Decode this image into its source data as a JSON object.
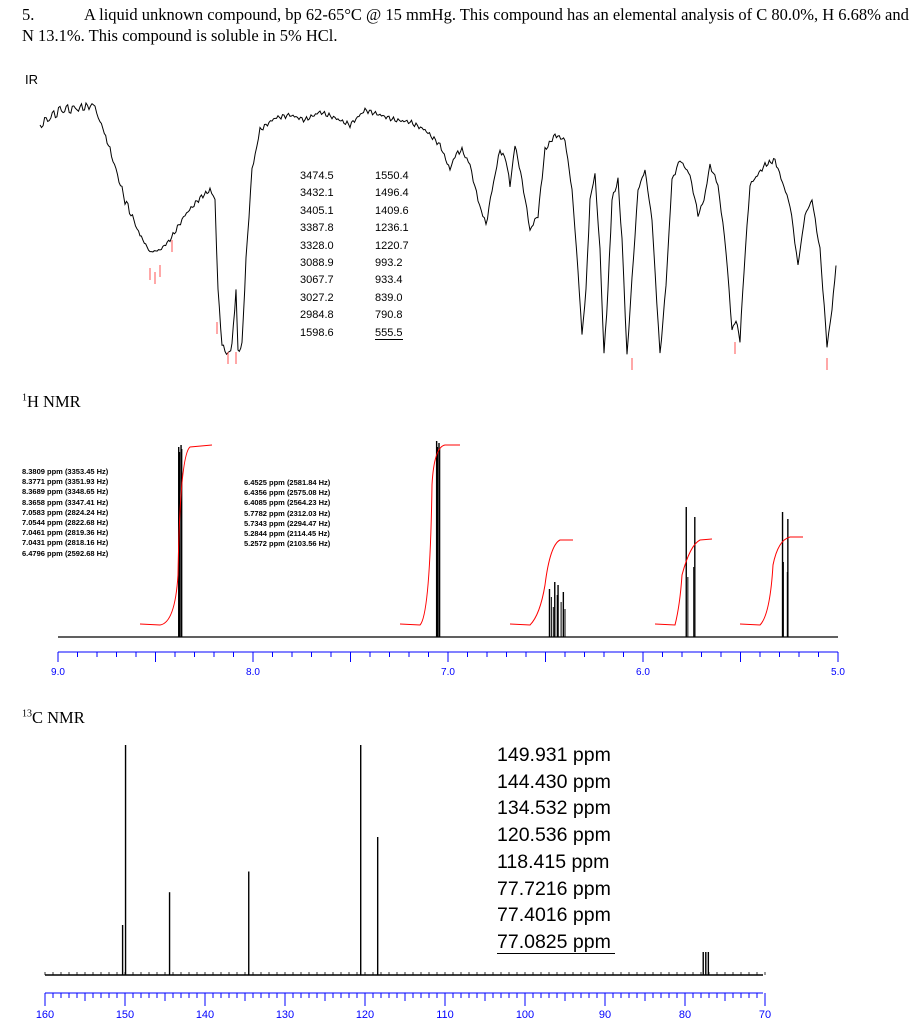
{
  "problem": {
    "number": "5.",
    "text": "A liquid unknown compound, bp 62-65°C @ 15 mmHg.  This compound has an elemental analysis of C 80.0%, H 6.68% and N 13.1%.  This compound is soluble in 5% HCl."
  },
  "labels": {
    "ir": "IR",
    "h_nmr_sup": "1",
    "h_nmr": "H NMR",
    "c_nmr_sup": "13",
    "c_nmr": "C NMR"
  },
  "ir_peaks_col1": [
    "3474.5",
    "3432.1",
    "3405.1",
    "3387.8",
    "3328.0",
    "3088.9",
    "3067.7",
    "3027.2",
    "2984.8",
    "1598.6"
  ],
  "ir_peaks_col2": [
    "1550.4",
    "1496.4",
    "1409.6",
    "1236.1",
    "1220.7",
    "993.2",
    "933.4",
    "839.0",
    "790.8",
    "555.5"
  ],
  "h_peaks_left": [
    "8.3809 ppm (3353.45 Hz)",
    "8.3771 ppm (3351.93 Hz)",
    "8.3689 ppm (3348.65 Hz)",
    "8.3658 ppm (3347.41 Hz)",
    "7.0583 ppm (2824.24 Hz)",
    "7.0544 ppm (2822.68 Hz)",
    "7.0461 ppm (2819.36 Hz)",
    "7.0431 ppm (2818.16 Hz)",
    "6.4796 ppm (2592.68 Hz)"
  ],
  "h_peaks_right": [
    "6.4525 ppm (2581.84 Hz)",
    "6.4356 ppm (2575.08 Hz)",
    "6.4085 ppm (2564.23 Hz)",
    "5.7782 ppm (2312.03 Hz)",
    "5.7343 ppm (2294.47 Hz)",
    "5.2844 ppm (2114.45 Hz)",
    "5.2572 ppm (2103.56 Hz)"
  ],
  "c_peaks": [
    "149.931 ppm",
    "144.430 ppm",
    "134.532 ppm",
    "120.536 ppm",
    "118.415 ppm",
    "77.7216 ppm",
    "77.4016 ppm",
    "77.0825 ppm"
  ],
  "chart_data": [
    {
      "type": "line",
      "title": "IR",
      "x_unit": "cm-1",
      "peaks_cm1": [
        3474.5,
        3432.1,
        3405.1,
        3387.8,
        3328.0,
        3088.9,
        3067.7,
        3027.2,
        2984.8,
        1598.6,
        1550.4,
        1496.4,
        1409.6,
        1236.1,
        1220.7,
        993.2,
        933.4,
        839.0,
        790.8,
        555.5
      ],
      "color": "#000000"
    },
    {
      "type": "line",
      "title": "1H NMR",
      "x_ticks": [
        "9.0",
        "8.0",
        "7.0",
        "6.0",
        "5.0"
      ],
      "xlim": [
        9.0,
        5.0
      ],
      "peaks_ppm": [
        8.3809,
        8.3771,
        8.3689,
        8.3658,
        7.0583,
        7.0544,
        7.0461,
        7.0431,
        6.4796,
        6.4525,
        6.4356,
        6.4085,
        5.7782,
        5.7343,
        5.2844,
        5.2572
      ],
      "integral_color": "#ff0000"
    },
    {
      "type": "bar",
      "title": "13C NMR",
      "x_ticks": [
        "160",
        "150",
        "140",
        "130",
        "120",
        "110",
        "100",
        "90",
        "80",
        "70"
      ],
      "xlim": [
        160,
        70
      ],
      "peaks_ppm": [
        149.931,
        144.43,
        134.532,
        120.536,
        118.415,
        77.7216,
        77.4016,
        77.0825
      ],
      "relative_heights": [
        1.0,
        0.36,
        0.45,
        1.0,
        0.6,
        0.1,
        0.1,
        0.1
      ],
      "axis_color": "#0000ff"
    }
  ]
}
